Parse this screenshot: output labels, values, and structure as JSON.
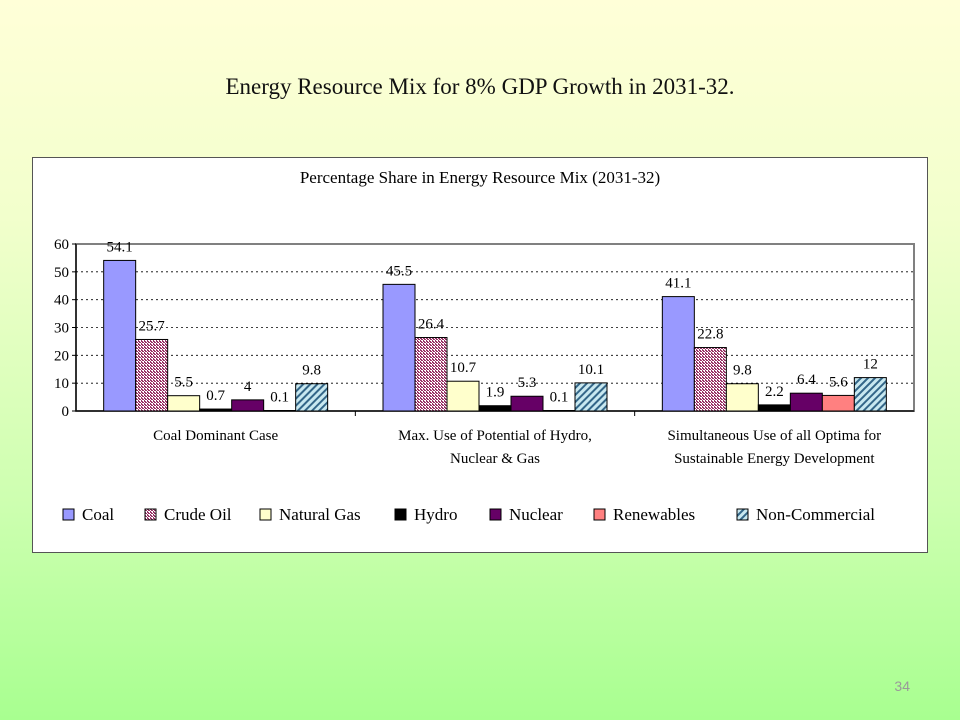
{
  "slide": {
    "title": "Energy Resource Mix for 8% GDP Growth in 2031-32.",
    "page_number": "34"
  },
  "colors": {
    "Coal": "#9999ff",
    "Crude Oil": "#993366",
    "Natural Gas": "#ffffcc",
    "Hydro": "#000000",
    "Nuclear": "#660066",
    "Renewables": "#ff8080",
    "Non-Commercial": "#99ccdd"
  },
  "chart_data": {
    "type": "bar",
    "title": "Percentage Share in Energy Resource Mix (2031-32)",
    "xlabel": "",
    "ylabel": "",
    "ylim": [
      0,
      60
    ],
    "yticks": [
      0,
      10,
      20,
      30,
      40,
      50,
      60
    ],
    "grid": true,
    "legend_position": "bottom",
    "categories": [
      [
        "Coal Dominant Case"
      ],
      [
        "Max. Use of Potential of Hydro,",
        "Nuclear & Gas"
      ],
      [
        "Simultaneous Use of all Optima for",
        "Sustainable Energy Development"
      ]
    ],
    "series": [
      {
        "name": "Coal",
        "values": [
          54.1,
          45.5,
          41.1
        ],
        "labels": [
          "54.1",
          "45.5",
          "41.1"
        ]
      },
      {
        "name": "Crude Oil",
        "values": [
          25.7,
          26.4,
          22.8
        ],
        "labels": [
          "25.7",
          "26.4",
          "22.8"
        ]
      },
      {
        "name": "Natural Gas",
        "values": [
          5.5,
          10.7,
          9.8
        ],
        "labels": [
          "5.5",
          "10.7",
          "9.8"
        ]
      },
      {
        "name": "Hydro",
        "values": [
          0.7,
          1.9,
          2.2
        ],
        "labels": [
          "0.7",
          "1.9",
          "2.2"
        ]
      },
      {
        "name": "Nuclear",
        "values": [
          4,
          5.3,
          6.4
        ],
        "labels": [
          "4",
          "5.3",
          "6.4"
        ]
      },
      {
        "name": "Renewables",
        "values": [
          0.1,
          0.1,
          5.6
        ],
        "labels": [
          "0.1",
          "0.1",
          "5.6"
        ]
      },
      {
        "name": "Non-Commercial",
        "values": [
          9.8,
          10.1,
          12
        ],
        "labels": [
          "9.8",
          "10.1",
          "12"
        ]
      }
    ]
  }
}
